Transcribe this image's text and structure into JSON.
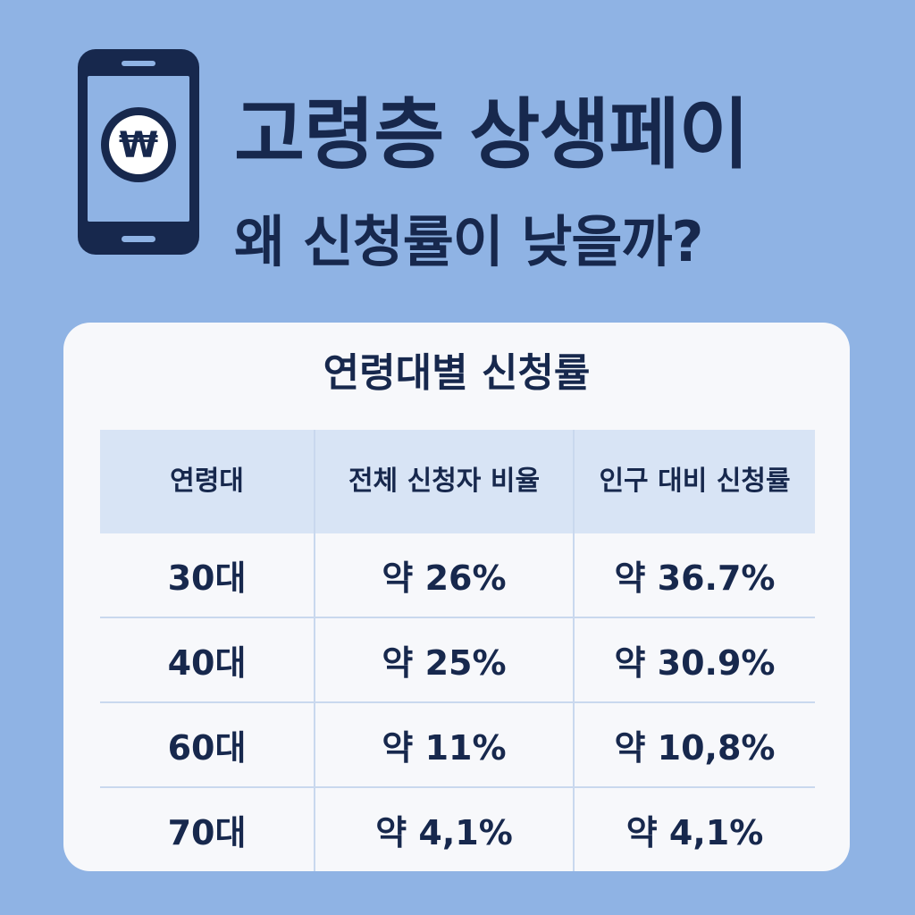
{
  "header": {
    "icon": "smartphone-won-icon",
    "icon_symbol": "₩",
    "title": "고령층 상생페이",
    "subtitle": "왜 신청률이 낮을까?"
  },
  "card": {
    "title": "연령대별 신청률",
    "columns": [
      "연령대",
      "전체 신청자 비율",
      "인구 대비 신청률"
    ],
    "rows": [
      {
        "age": "30대",
        "share": "약 26%",
        "rate": "약 36.7%"
      },
      {
        "age": "40대",
        "share": "약 25%",
        "rate": "약 30.9%"
      },
      {
        "age": "60대",
        "share": "약 11%",
        "rate": "약 10,8%"
      },
      {
        "age": "70대",
        "share": "약 4,1%",
        "rate": "약 4,1%"
      }
    ]
  },
  "colors": {
    "background": "#8fb3e4",
    "navy": "#17284d",
    "card": "#f7f8fb",
    "table_header": "#d8e4f5",
    "divider": "#c9d8ee"
  }
}
